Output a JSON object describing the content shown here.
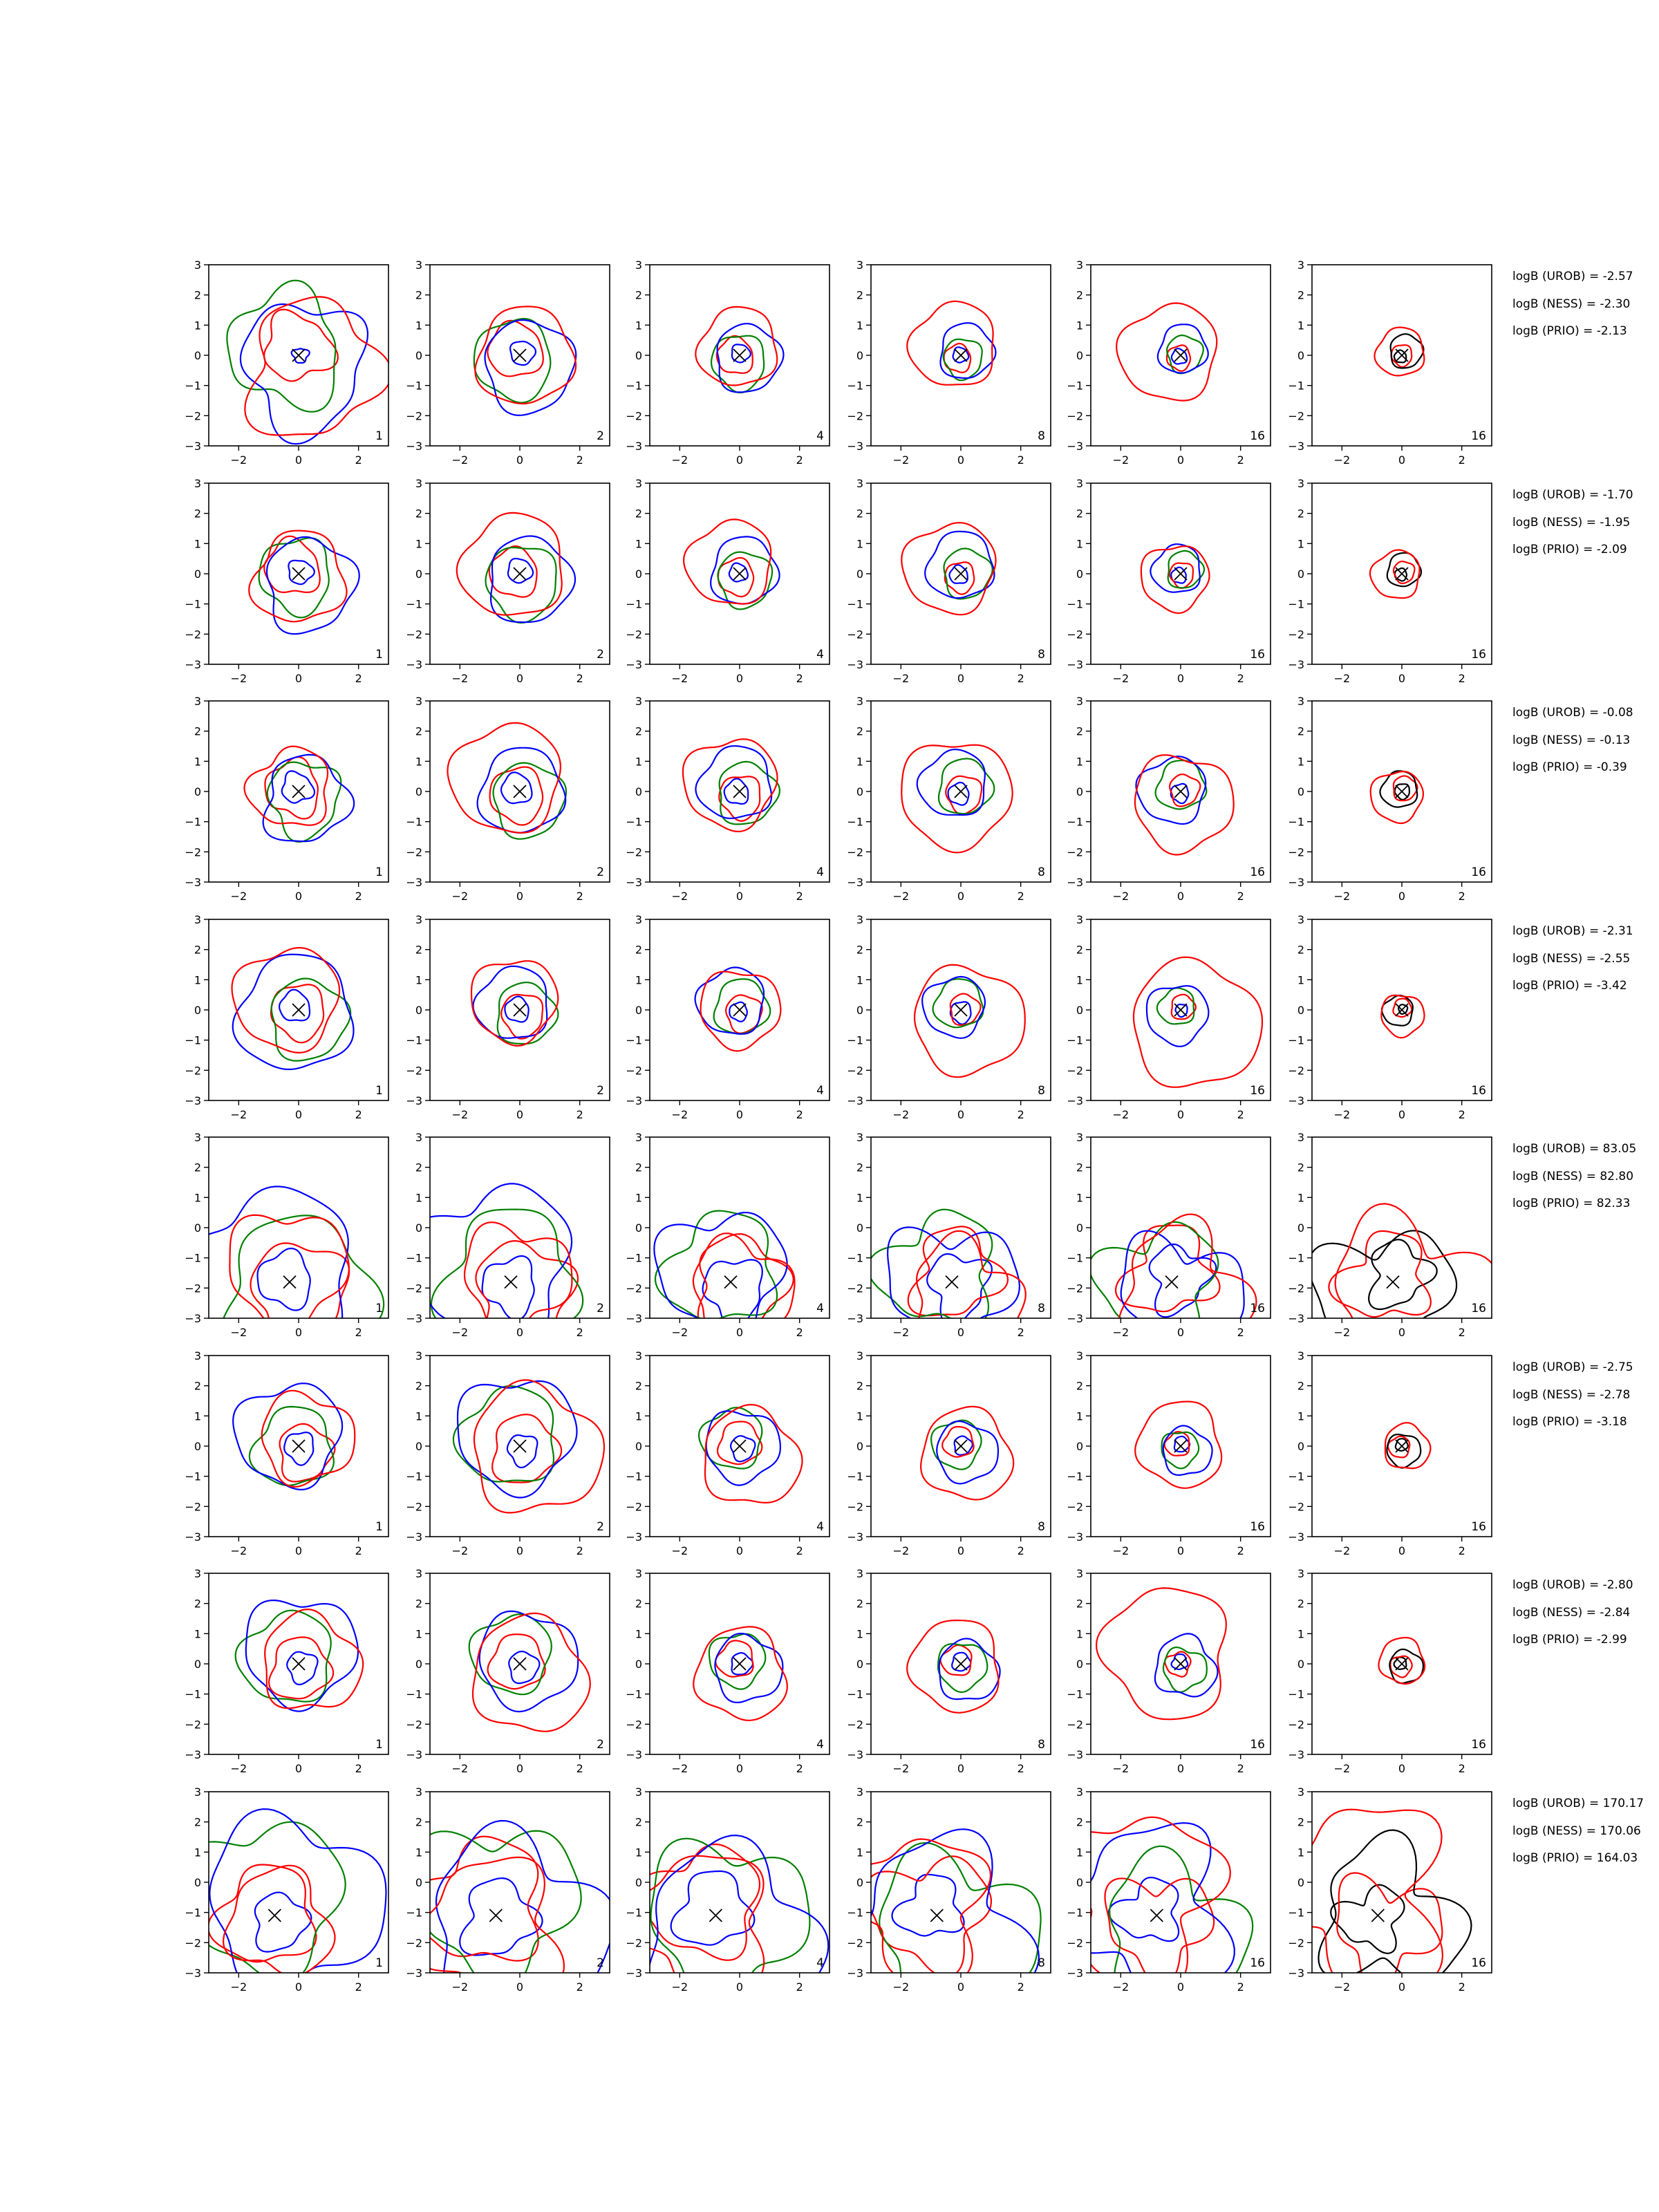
{
  "chart_data": {
    "type": "contour-grid",
    "axis": {
      "xlim": [
        -3,
        3
      ],
      "ylim": [
        -3,
        3
      ],
      "xticks": [
        -2,
        0,
        2
      ],
      "yticks": [
        3,
        2,
        1,
        0,
        -1,
        -2,
        -3
      ],
      "xtick_labels": [
        "−2",
        "0",
        "2"
      ],
      "ytick_labels": [
        "3",
        "2",
        "1",
        "0",
        "−1",
        "−2",
        "−3"
      ]
    },
    "column_labels": [
      "1",
      "2",
      "4",
      "8",
      "16",
      "16"
    ],
    "colors": {
      "blue": "#0000ff",
      "red": "#ff0000",
      "green": "#008000",
      "black": "#000000"
    },
    "rows": [
      {
        "marker": [
          0,
          0
        ],
        "logb": [
          "logB (UROB) = -2.57",
          "logB (NESS) = -2.30",
          "logB (PRIO) = -2.13"
        ],
        "scales": [
          [
            0.25,
            1.1,
            1.85,
            2.05,
            2.2
          ],
          [
            0.4,
            0.9,
            1.3,
            1.5,
            1.6
          ],
          [
            0.3,
            0.6,
            0.9,
            1.1,
            1.3
          ],
          [
            0.25,
            0.45,
            0.65,
            0.9,
            1.4
          ],
          [
            0.25,
            0.4,
            0.6,
            0.8,
            1.6
          ],
          [
            0.2,
            0.35,
            0.55,
            0.8
          ]
        ],
        "wobble": [
          0.15,
          0.07,
          0.07,
          0.07,
          0.07,
          0.06
        ]
      },
      {
        "marker": [
          0,
          0
        ],
        "logb": [
          "logB (UROB) = -1.70",
          "logB (NESS) = -1.95",
          "logB (PRIO) = -2.09"
        ],
        "scales": [
          [
            0.4,
            0.9,
            1.2,
            1.5,
            1.5
          ],
          [
            0.4,
            0.8,
            1.2,
            1.4,
            1.7
          ],
          [
            0.3,
            0.6,
            0.9,
            1.1,
            1.4
          ],
          [
            0.3,
            0.5,
            0.8,
            1.1,
            1.5
          ],
          [
            0.25,
            0.4,
            0.6,
            0.8,
            1.1
          ],
          [
            0.2,
            0.35,
            0.55,
            0.8
          ]
        ],
        "wobble": [
          0.1,
          0.07,
          0.07,
          0.07,
          0.07,
          0.06
        ]
      },
      {
        "marker": [
          0,
          0
        ],
        "logb": [
          "logB (UROB) = -0.08",
          "logB (NESS) = -0.13",
          "logB (PRIO) = -0.39"
        ],
        "scales": [
          [
            0.5,
            0.9,
            1.2,
            1.4,
            1.3
          ],
          [
            0.5,
            0.9,
            1.2,
            1.4,
            1.8
          ],
          [
            0.4,
            0.7,
            1.0,
            1.2,
            1.5
          ],
          [
            0.35,
            0.6,
            0.9,
            1.1,
            1.8
          ],
          [
            0.3,
            0.5,
            0.8,
            1.1,
            1.6
          ],
          [
            0.25,
            0.4,
            0.6,
            0.85
          ]
        ],
        "wobble": [
          0.12,
          0.07,
          0.08,
          0.07,
          0.08,
          0.06
        ]
      },
      {
        "marker": [
          0,
          0
        ],
        "logb": [
          "logB (UROB) = -2.31",
          "logB (NESS) = -2.55",
          "logB (PRIO) = -3.42"
        ],
        "scales": [
          [
            0.5,
            0.9,
            1.3,
            1.9,
            1.7
          ],
          [
            0.4,
            0.7,
            1.0,
            1.2,
            1.4
          ],
          [
            0.3,
            0.6,
            0.9,
            1.1,
            1.3
          ],
          [
            0.35,
            0.5,
            0.8,
            1.0,
            1.8
          ],
          [
            0.2,
            0.4,
            0.6,
            1.0,
            2.1
          ],
          [
            0.15,
            0.3,
            0.5,
            0.7
          ]
        ],
        "wobble": [
          0.08,
          0.07,
          0.07,
          0.07,
          0.07,
          0.06
        ]
      },
      {
        "marker": [
          -0.3,
          -1.8
        ],
        "logb": [
          "logB (UROB) = 83.05",
          "logB (NESS) = 82.80",
          "logB (PRIO) = 82.33"
        ],
        "scales": [
          [
            0.9,
            1.6,
            2.5,
            2.7,
            1.9
          ],
          [
            0.9,
            1.6,
            2.2,
            2.5,
            1.7
          ],
          [
            1.0,
            1.5,
            1.8,
            2.0,
            1.6
          ],
          [
            1.0,
            1.4,
            1.8,
            2.0,
            1.7
          ],
          [
            1.0,
            1.4,
            1.8,
            1.9,
            2.0
          ],
          [
            1.0,
            1.4,
            2.1,
            2.5
          ]
        ],
        "wobble": [
          0.12,
          0.15,
          0.15,
          0.2,
          0.22,
          0.22
        ]
      },
      {
        "marker": [
          0,
          0
        ],
        "logb": [
          "logB (UROB) = -2.75",
          "logB (NESS) = -2.78",
          "logB (PRIO) = -3.18"
        ],
        "scales": [
          [
            0.5,
            0.9,
            1.3,
            1.7,
            1.5
          ],
          [
            0.5,
            1.1,
            1.6,
            1.9,
            2.1
          ],
          [
            0.4,
            0.7,
            1.0,
            1.2,
            1.6
          ],
          [
            0.3,
            0.5,
            0.8,
            1.0,
            1.5
          ],
          [
            0.25,
            0.4,
            0.6,
            0.8,
            1.4
          ],
          [
            0.2,
            0.35,
            0.55,
            0.75
          ]
        ],
        "wobble": [
          0.1,
          0.1,
          0.08,
          0.07,
          0.07,
          0.06
        ]
      },
      {
        "marker": [
          0,
          0
        ],
        "logb": [
          "logB (UROB) = -2.80",
          "logB (NESS) = -2.84",
          "logB (PRIO) = -2.99"
        ],
        "scales": [
          [
            0.5,
            1.0,
            1.5,
            1.8,
            1.6
          ],
          [
            0.5,
            0.9,
            1.3,
            1.6,
            1.9
          ],
          [
            0.35,
            0.6,
            0.9,
            1.1,
            1.5
          ],
          [
            0.3,
            0.5,
            0.8,
            1.0,
            1.5
          ],
          [
            0.25,
            0.4,
            0.7,
            1.0,
            2.1
          ],
          [
            0.2,
            0.35,
            0.55,
            0.75
          ]
        ],
        "wobble": [
          0.1,
          0.08,
          0.08,
          0.07,
          0.1,
          0.06
        ]
      },
      {
        "marker": [
          -0.8,
          -1.1
        ],
        "logb": [
          "logB (UROB) = 170.17",
          "logB (NESS) = 170.06",
          "logB (PRIO) = 164.03"
        ],
        "scales": [
          [
            0.9,
            1.6,
            2.5,
            2.8,
            1.7
          ],
          [
            1.2,
            2.0,
            2.5,
            2.8,
            2.3
          ],
          [
            1.2,
            1.8,
            2.5,
            2.8,
            2.2
          ],
          [
            1.0,
            1.8,
            2.5,
            2.8,
            2.2
          ],
          [
            1.0,
            1.6,
            2.2,
            2.6,
            2.6
          ],
          [
            1.0,
            1.6,
            2.2,
            2.8
          ]
        ],
        "wobble": [
          0.14,
          0.18,
          0.16,
          0.2,
          0.22,
          0.25
        ]
      }
    ]
  }
}
